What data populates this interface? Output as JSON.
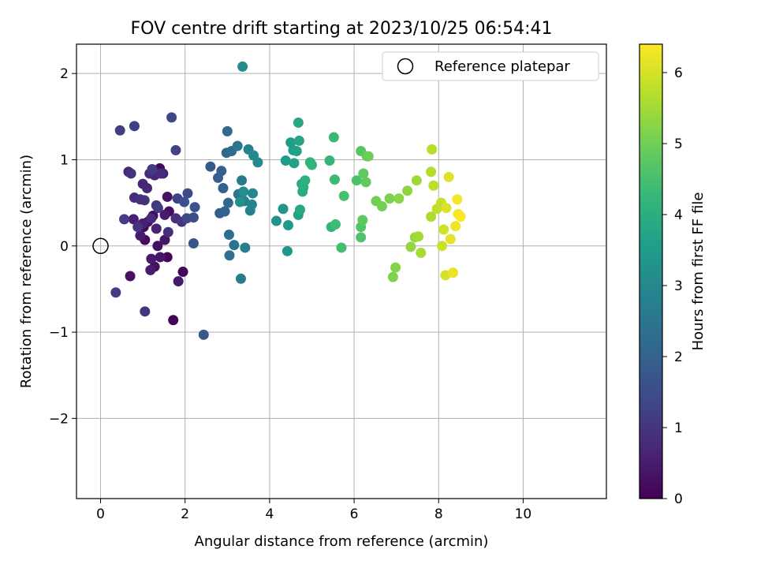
{
  "chart_data": {
    "type": "scatter",
    "title": "FOV centre drift starting at 2023/10/25 06:54:41",
    "xlabel": "Angular distance from reference (arcmin)",
    "ylabel": "Rotation from reference (arcmin)",
    "xlim": [
      -0.57,
      11.97
    ],
    "ylim": [
      -2.93,
      2.34
    ],
    "xticks": [
      0,
      2,
      4,
      6,
      8,
      10
    ],
    "yticks": [
      -2,
      -1,
      0,
      1,
      2
    ],
    "xtick_labels": [
      "0",
      "2",
      "4",
      "6",
      "8",
      "10"
    ],
    "ytick_labels": [
      "−2",
      "−1",
      "0",
      "1",
      "2"
    ],
    "grid": true,
    "legend": {
      "position": "top-right",
      "entries": [
        {
          "label": "Reference platepar",
          "marker": "open-circle",
          "x": 0,
          "y": 0
        }
      ]
    },
    "colorbar": {
      "label": "Hours from first FF file",
      "colormap": "viridis",
      "range": [
        0,
        6.4
      ],
      "ticks": [
        0,
        1,
        2,
        3,
        4,
        5,
        6
      ]
    },
    "points": [
      [
        1.72,
        -0.86,
        0.05
      ],
      [
        1.95,
        -0.3,
        0.08
      ],
      [
        1.58,
        -0.13,
        0.1
      ],
      [
        1.02,
        0.22,
        0.12
      ],
      [
        1.4,
        0.9,
        0.15
      ],
      [
        1.24,
        0.35,
        0.18
      ],
      [
        1.05,
        0.07,
        0.2
      ],
      [
        1.62,
        0.4,
        0.22
      ],
      [
        1.35,
        0.0,
        0.25
      ],
      [
        1.28,
        -0.24,
        0.28
      ],
      [
        0.7,
        -0.35,
        0.3
      ],
      [
        1.58,
        0.57,
        0.33
      ],
      [
        1.12,
        0.28,
        0.35
      ],
      [
        1.41,
        -0.13,
        0.38
      ],
      [
        1.52,
        0.07,
        0.4
      ],
      [
        1.84,
        -0.41,
        0.42
      ],
      [
        1.2,
        -0.15,
        0.45
      ],
      [
        0.94,
        0.12,
        0.48
      ],
      [
        1.52,
        0.36,
        0.5
      ],
      [
        1.18,
        -0.28,
        0.52
      ],
      [
        0.78,
        0.31,
        0.55
      ],
      [
        1.0,
        0.26,
        0.58
      ],
      [
        1.48,
        0.84,
        0.6
      ],
      [
        1.32,
        0.2,
        0.62
      ],
      [
        1.28,
        0.82,
        0.65
      ],
      [
        1.0,
        0.72,
        0.68
      ],
      [
        1.1,
        0.67,
        0.7
      ],
      [
        0.66,
        0.86,
        0.72
      ],
      [
        1.2,
        0.32,
        0.75
      ],
      [
        1.16,
        0.84,
        0.78
      ],
      [
        0.8,
        0.56,
        0.8
      ],
      [
        1.42,
        0.84,
        0.82
      ],
      [
        1.78,
        0.32,
        0.85
      ],
      [
        1.6,
        0.16,
        0.88
      ],
      [
        0.72,
        0.84,
        0.9
      ],
      [
        0.94,
        0.54,
        0.92
      ],
      [
        1.04,
        0.53,
        0.95
      ],
      [
        0.88,
        0.22,
        0.98
      ],
      [
        1.92,
        0.28,
        1.0
      ],
      [
        1.32,
        0.47,
        1.03
      ],
      [
        1.05,
        -0.76,
        1.05
      ],
      [
        1.22,
        0.89,
        1.08
      ],
      [
        1.36,
        0.44,
        1.1
      ],
      [
        0.36,
        -0.54,
        1.12
      ],
      [
        0.56,
        0.31,
        1.15
      ],
      [
        0.46,
        1.34,
        1.18
      ],
      [
        0.8,
        1.39,
        1.2
      ],
      [
        1.82,
        0.55,
        1.25
      ],
      [
        1.78,
        1.11,
        1.3
      ],
      [
        1.68,
        1.49,
        1.35
      ],
      [
        2.04,
        0.32,
        1.4
      ],
      [
        2.06,
        0.61,
        1.45
      ],
      [
        2.2,
        0.33,
        1.5
      ],
      [
        1.98,
        0.51,
        1.55
      ],
      [
        2.23,
        0.45,
        1.6
      ],
      [
        2.2,
        0.03,
        1.7
      ],
      [
        2.44,
        -1.03,
        1.75
      ],
      [
        2.6,
        0.92,
        1.8
      ],
      [
        2.82,
        0.38,
        1.85
      ],
      [
        2.78,
        0.79,
        1.9
      ],
      [
        2.86,
        0.87,
        1.95
      ],
      [
        2.9,
        0.67,
        2.0
      ],
      [
        2.94,
        0.4,
        2.05
      ],
      [
        3.02,
        0.5,
        2.1
      ],
      [
        2.98,
        1.08,
        2.15
      ],
      [
        3.0,
        1.33,
        2.2
      ],
      [
        3.1,
        1.1,
        2.25
      ],
      [
        3.04,
        0.13,
        2.3
      ],
      [
        3.05,
        -0.11,
        2.35
      ],
      [
        3.16,
        0.01,
        2.4
      ],
      [
        3.3,
        0.58,
        2.45
      ],
      [
        3.24,
        1.16,
        2.5
      ],
      [
        3.26,
        0.6,
        2.55
      ],
      [
        3.34,
        0.76,
        2.6
      ],
      [
        3.32,
        -0.38,
        2.65
      ],
      [
        3.4,
        0.52,
        2.7
      ],
      [
        3.42,
        -0.02,
        2.75
      ],
      [
        3.54,
        0.41,
        2.8
      ],
      [
        3.5,
        1.12,
        2.85
      ],
      [
        3.58,
        0.48,
        2.9
      ],
      [
        3.6,
        0.61,
        2.95
      ],
      [
        3.62,
        1.05,
        3.0
      ],
      [
        3.72,
        0.97,
        3.05
      ],
      [
        3.36,
        2.08,
        3.1
      ],
      [
        3.38,
        0.63,
        3.15
      ],
      [
        3.3,
        0.51,
        3.2
      ],
      [
        4.16,
        0.29,
        3.25
      ],
      [
        4.32,
        0.43,
        3.3
      ],
      [
        4.42,
        -0.06,
        3.35
      ],
      [
        4.44,
        0.24,
        3.4
      ],
      [
        4.38,
        0.99,
        3.45
      ],
      [
        4.5,
        1.2,
        3.5
      ],
      [
        4.56,
        1.11,
        3.55
      ],
      [
        4.58,
        0.96,
        3.6
      ],
      [
        4.64,
        1.1,
        3.65
      ],
      [
        4.68,
        0.36,
        3.7
      ],
      [
        4.7,
        1.22,
        3.75
      ],
      [
        4.72,
        0.42,
        3.8
      ],
      [
        4.68,
        1.43,
        3.85
      ],
      [
        4.76,
        0.72,
        3.9
      ],
      [
        4.78,
        0.63,
        3.95
      ],
      [
        4.8,
        0.68,
        4.0
      ],
      [
        4.84,
        0.76,
        4.05
      ],
      [
        4.96,
        0.97,
        4.1
      ],
      [
        5.0,
        0.94,
        4.15
      ],
      [
        5.42,
        0.99,
        4.2
      ],
      [
        5.46,
        0.22,
        4.25
      ],
      [
        5.52,
        1.26,
        4.3
      ],
      [
        5.54,
        0.77,
        4.35
      ],
      [
        5.56,
        0.25,
        4.4
      ],
      [
        5.7,
        -0.02,
        4.45
      ],
      [
        5.76,
        0.58,
        4.5
      ],
      [
        6.06,
        0.76,
        4.55
      ],
      [
        6.16,
        0.1,
        4.6
      ],
      [
        6.16,
        0.22,
        4.65
      ],
      [
        6.16,
        1.1,
        4.7
      ],
      [
        6.2,
        0.3,
        4.75
      ],
      [
        6.22,
        0.84,
        4.8
      ],
      [
        6.28,
        0.74,
        4.85
      ],
      [
        6.3,
        1.04,
        4.9
      ],
      [
        6.34,
        1.04,
        4.95
      ],
      [
        6.52,
        0.52,
        5.0
      ],
      [
        6.66,
        0.46,
        5.05
      ],
      [
        6.84,
        0.55,
        5.1
      ],
      [
        6.92,
        -0.36,
        5.15
      ],
      [
        6.98,
        -0.25,
        5.2
      ],
      [
        7.06,
        0.55,
        5.25
      ],
      [
        7.26,
        0.64,
        5.3
      ],
      [
        7.34,
        -0.01,
        5.35
      ],
      [
        7.44,
        0.1,
        5.4
      ],
      [
        7.48,
        0.76,
        5.45
      ],
      [
        7.52,
        0.11,
        5.5
      ],
      [
        7.58,
        -0.08,
        5.55
      ],
      [
        7.82,
        0.34,
        5.6
      ],
      [
        7.82,
        0.86,
        5.65
      ],
      [
        7.84,
        1.12,
        5.7
      ],
      [
        7.88,
        0.7,
        5.75
      ],
      [
        7.96,
        0.43,
        5.8
      ],
      [
        8.06,
        0.5,
        5.85
      ],
      [
        8.08,
        0.0,
        5.9
      ],
      [
        8.12,
        0.19,
        5.95
      ],
      [
        8.16,
        -0.34,
        6.0
      ],
      [
        8.18,
        0.44,
        6.05
      ],
      [
        8.24,
        0.8,
        6.1
      ],
      [
        8.28,
        0.08,
        6.15
      ],
      [
        8.34,
        -0.31,
        6.2
      ],
      [
        8.4,
        0.23,
        6.25
      ],
      [
        8.44,
        0.54,
        6.3
      ],
      [
        8.46,
        0.37,
        6.35
      ],
      [
        8.52,
        0.34,
        6.4
      ]
    ]
  }
}
